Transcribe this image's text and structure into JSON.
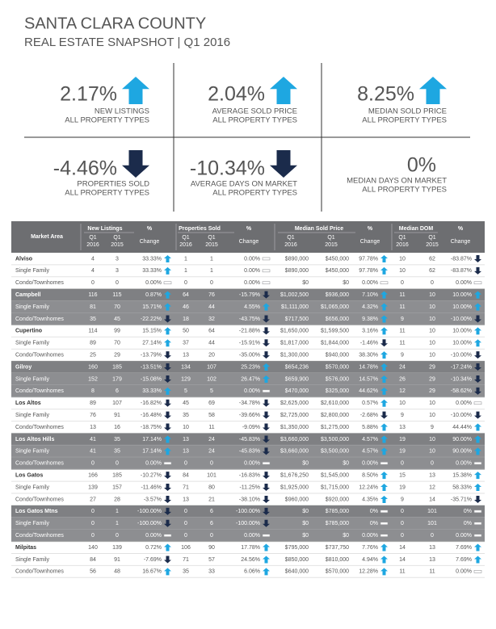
{
  "header": {
    "title": "SANTA CLARA COUNTY",
    "subtitle": "REAL ESTATE SNAPSHOT | Q1 2016"
  },
  "kpis": [
    {
      "value": "2.17%",
      "label": [
        "NEW LISTINGS",
        "ALL PROPERTY TYPES"
      ]
    },
    {
      "value": "2.04%",
      "label": [
        "AVERAGE SOLD PRICE",
        "ALL PROPERTY TYPES"
      ]
    },
    {
      "value": "8.25%",
      "label": [
        "MEDIAN SOLD PRICE",
        "ALL PROPERTY TYPES"
      ]
    },
    {
      "value": "-4.46%",
      "label": [
        "PROPERTIES SOLD",
        "ALL PROPERTY TYPES"
      ]
    },
    {
      "value": "-10.34%",
      "label": [
        "AVERAGE DAYS ON MARKET",
        "ALL PROPERTY TYPES"
      ]
    },
    {
      "value": "0%",
      "label": [
        "MEDIAN DAYS ON MARKET",
        "ALL PROPERTY TYPES"
      ]
    }
  ],
  "table": {
    "header_top": [
      "Market Area",
      "New Listings",
      "%",
      "Properties Sold",
      "%",
      "Median Sold Price",
      "%",
      "Median DOM",
      "%"
    ],
    "quarter": "Q1",
    "years": [
      "2016",
      "2015"
    ],
    "change": "Change",
    "rows": [
      [
        "Alviso",
        "4",
        "3",
        "33.33%",
        "1",
        "1",
        "0.00%",
        "$890,000",
        "$450,000",
        "97.78%",
        "10",
        "62",
        "-83.87%"
      ],
      [
        "Single Family",
        "4",
        "3",
        "33.33%",
        "1",
        "1",
        "0.00%",
        "$890,000",
        "$450,000",
        "97.78%",
        "10",
        "62",
        "-83.87%"
      ],
      [
        "Condo/Townhomes",
        "0",
        "0",
        "0.00%",
        "0",
        "0",
        "0.00%",
        "$0",
        "$0",
        "0.00%",
        "0",
        "0",
        "0.00%"
      ],
      [
        "Campbell",
        "116",
        "115",
        "0.87%",
        "64",
        "76",
        "-15.79%",
        "$1,002,500",
        "$936,000",
        "7.10%",
        "11",
        "10",
        "10.00%"
      ],
      [
        "Single Family",
        "81",
        "70",
        "15.71%",
        "46",
        "44",
        "4.55%",
        "$1,111,000",
        "$1,065,000",
        "4.32%",
        "11",
        "10",
        "10.00%"
      ],
      [
        "Condo/Townhomes",
        "35",
        "45",
        "-22.22%",
        "18",
        "32",
        "-43.75%",
        "$717,500",
        "$656,000",
        "9.38%",
        "9",
        "10",
        "-10.00%"
      ],
      [
        "Cupertino",
        "114",
        "99",
        "15.15%",
        "50",
        "64",
        "-21.88%",
        "$1,650,000",
        "$1,599,500",
        "3.16%",
        "11",
        "10",
        "10.00%"
      ],
      [
        "Single Family",
        "89",
        "70",
        "27.14%",
        "37",
        "44",
        "-15.91%",
        "$1,817,000",
        "$1,844,000",
        "-1.46%",
        "11",
        "10",
        "10.00%"
      ],
      [
        "Condo/Townhomes",
        "25",
        "29",
        "-13.79%",
        "13",
        "20",
        "-35.00%",
        "$1,300,000",
        "$940,000",
        "38.30%",
        "9",
        "10",
        "-10.00%"
      ],
      [
        "Gilroy",
        "160",
        "185",
        "-13.51%",
        "134",
        "107",
        "25.23%",
        "$654,236",
        "$570,000",
        "14.78%",
        "24",
        "29",
        "-17.24%"
      ],
      [
        "Single Family",
        "152",
        "179",
        "-15.08%",
        "129",
        "102",
        "26.47%",
        "$659,900",
        "$576,000",
        "14.57%",
        "26",
        "29",
        "-10.34%"
      ],
      [
        "Condo/Townhomes",
        "8",
        "6",
        "33.33%",
        "5",
        "5",
        "0.00%",
        "$470,000",
        "$325,000",
        "44.62%",
        "12",
        "29",
        "-58.62%"
      ],
      [
        "Los Altos",
        "89",
        "107",
        "-16.82%",
        "45",
        "69",
        "-34.78%",
        "$2,625,000",
        "$2,610,000",
        "0.57%",
        "10",
        "10",
        "0.00%"
      ],
      [
        "Single Family",
        "76",
        "91",
        "-16.48%",
        "35",
        "58",
        "-39.66%",
        "$2,725,000",
        "$2,800,000",
        "-2.68%",
        "9",
        "10",
        "-10.00%"
      ],
      [
        "Condo/Townhomes",
        "13",
        "16",
        "-18.75%",
        "10",
        "11",
        "-9.09%",
        "$1,350,000",
        "$1,275,000",
        "5.88%",
        "13",
        "9",
        "44.44%"
      ],
      [
        "Los Altos Hills",
        "41",
        "35",
        "17.14%",
        "13",
        "24",
        "-45.83%",
        "$3,660,000",
        "$3,500,000",
        "4.57%",
        "19",
        "10",
        "90.00%"
      ],
      [
        "Single Family",
        "41",
        "35",
        "17.14%",
        "13",
        "24",
        "-45.83%",
        "$3,660,000",
        "$3,500,000",
        "4.57%",
        "19",
        "10",
        "90.00%"
      ],
      [
        "Condo/Townhomes",
        "0",
        "0",
        "0.00%",
        "0",
        "0",
        "0.00%",
        "$0",
        "$0",
        "0.00%",
        "0",
        "0",
        "0.00%"
      ],
      [
        "Los Gatos",
        "166",
        "185",
        "-10.27%",
        "84",
        "101",
        "-16.83%",
        "$1,676,250",
        "$1,545,000",
        "8.50%",
        "15",
        "13",
        "15.38%"
      ],
      [
        "Single Family",
        "139",
        "157",
        "-11.46%",
        "71",
        "80",
        "-11.25%",
        "$1,925,000",
        "$1,715,000",
        "12.24%",
        "19",
        "12",
        "58.33%"
      ],
      [
        "Condo/Townhomes",
        "27",
        "28",
        "-3.57%",
        "13",
        "21",
        "-38.10%",
        "$960,000",
        "$920,000",
        "4.35%",
        "9",
        "14",
        "-35.71%"
      ],
      [
        "Los Gatos Mtns",
        "0",
        "1",
        "-100.00%",
        "0",
        "6",
        "-100.00%",
        "$0",
        "$785,000",
        "0%",
        "0",
        "101",
        "0%"
      ],
      [
        "Single Family",
        "0",
        "1",
        "-100.00%",
        "0",
        "6",
        "-100.00%",
        "$0",
        "$785,000",
        "0%",
        "0",
        "101",
        "0%"
      ],
      [
        "Condo/Townhomes",
        "0",
        "0",
        "0.00%",
        "0",
        "0",
        "0.00%",
        "$0",
        "$0",
        "0.00%",
        "0",
        "0",
        "0.00%"
      ],
      [
        "Milpitas",
        "140",
        "139",
        "0.72%",
        "106",
        "90",
        "17.78%",
        "$795,000",
        "$737,750",
        "7.76%",
        "14",
        "13",
        "7.69%"
      ],
      [
        "Single Family",
        "84",
        "91",
        "-7.69%",
        "71",
        "57",
        "24.56%",
        "$850,000",
        "$810,000",
        "4.94%",
        "14",
        "13",
        "7.69%"
      ],
      [
        "Condo/Townhomes",
        "56",
        "48",
        "16.67%",
        "35",
        "33",
        "6.06%",
        "$640,000",
        "$570,000",
        "12.28%",
        "11",
        "11",
        "0.00%"
      ]
    ]
  }
}
